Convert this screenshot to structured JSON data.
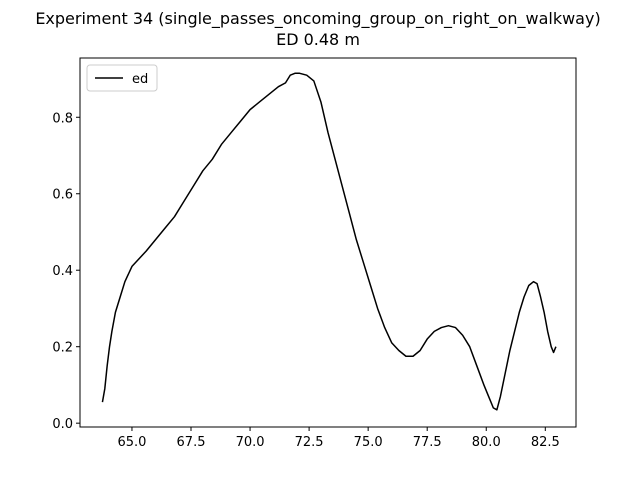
{
  "chart_data": {
    "type": "line",
    "title": "Experiment 34 (single_passes_oncoming_group_on_right_on_walkway)",
    "subtitle": "ED 0.48 m",
    "xlabel": "",
    "ylabel": "",
    "xlim": [
      62.8,
      83.8
    ],
    "ylim": [
      -0.01,
      0.955
    ],
    "xticks": [
      65.0,
      67.5,
      70.0,
      72.5,
      75.0,
      77.5,
      80.0,
      82.5
    ],
    "xtick_labels": [
      "65.0",
      "67.5",
      "70.0",
      "72.5",
      "75.0",
      "77.5",
      "80.0",
      "82.5"
    ],
    "yticks": [
      0.0,
      0.2,
      0.4,
      0.6,
      0.8
    ],
    "ytick_labels": [
      "0.0",
      "0.2",
      "0.4",
      "0.6",
      "0.8"
    ],
    "grid": false,
    "legend_position": "upper-left",
    "series": [
      {
        "name": "ed",
        "color": "#000000",
        "x": [
          63.75,
          63.85,
          63.95,
          64.05,
          64.15,
          64.3,
          64.5,
          64.7,
          65.0,
          65.3,
          65.6,
          66.0,
          66.4,
          66.8,
          67.2,
          67.6,
          68.0,
          68.4,
          68.8,
          69.2,
          69.6,
          70.0,
          70.4,
          70.8,
          71.2,
          71.5,
          71.7,
          71.9,
          72.1,
          72.4,
          72.7,
          73.0,
          73.3,
          73.6,
          73.9,
          74.2,
          74.5,
          74.8,
          75.1,
          75.4,
          75.7,
          76.0,
          76.3,
          76.6,
          76.9,
          77.2,
          77.5,
          77.8,
          78.1,
          78.4,
          78.7,
          79.0,
          79.3,
          79.6,
          79.9,
          80.1,
          80.3,
          80.45,
          80.6,
          80.8,
          81.0,
          81.2,
          81.4,
          81.6,
          81.8,
          82.0,
          82.15,
          82.3,
          82.45,
          82.6,
          82.75,
          82.85,
          82.95
        ],
        "y": [
          0.055,
          0.09,
          0.15,
          0.2,
          0.24,
          0.29,
          0.33,
          0.37,
          0.41,
          0.43,
          0.45,
          0.48,
          0.51,
          0.54,
          0.58,
          0.62,
          0.66,
          0.69,
          0.73,
          0.76,
          0.79,
          0.82,
          0.84,
          0.86,
          0.88,
          0.89,
          0.91,
          0.915,
          0.915,
          0.91,
          0.895,
          0.84,
          0.76,
          0.69,
          0.62,
          0.55,
          0.48,
          0.42,
          0.36,
          0.3,
          0.25,
          0.21,
          0.19,
          0.175,
          0.175,
          0.19,
          0.22,
          0.24,
          0.25,
          0.255,
          0.25,
          0.23,
          0.2,
          0.15,
          0.1,
          0.07,
          0.04,
          0.035,
          0.07,
          0.13,
          0.19,
          0.24,
          0.29,
          0.33,
          0.36,
          0.37,
          0.365,
          0.33,
          0.29,
          0.24,
          0.2,
          0.185,
          0.2
        ]
      }
    ]
  }
}
